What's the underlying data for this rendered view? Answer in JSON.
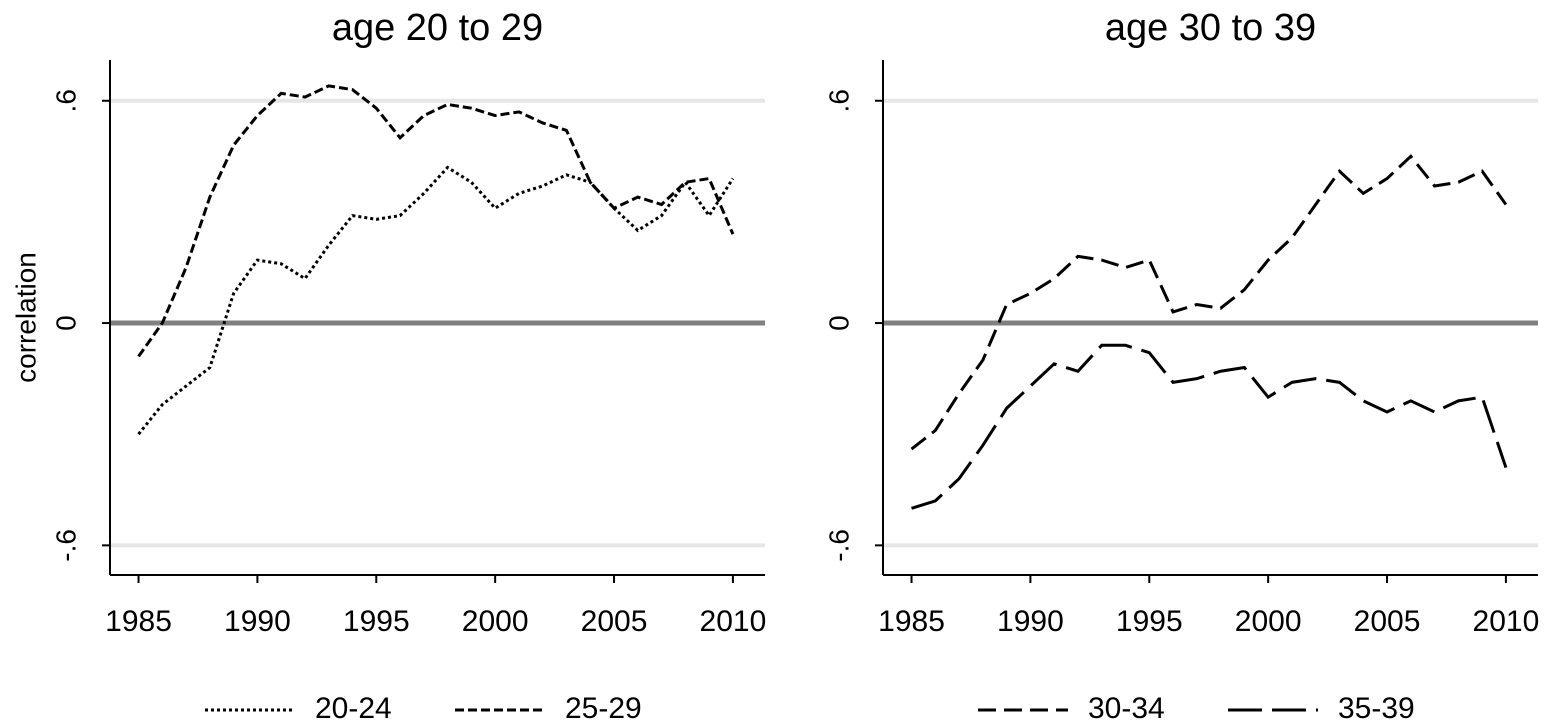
{
  "chart_data": [
    {
      "type": "line",
      "title": "age 20 to 29",
      "y_label": "correlation",
      "x": [
        1985,
        1986,
        1987,
        1988,
        1989,
        1990,
        1991,
        1992,
        1993,
        1994,
        1995,
        1996,
        1997,
        1998,
        1999,
        2000,
        2001,
        2002,
        2003,
        2004,
        2005,
        2006,
        2007,
        2008,
        2009,
        2010
      ],
      "series": [
        {
          "name": "20-24",
          "color": "#000000",
          "linestyle": "dotted",
          "values": [
            -0.3,
            -0.22,
            -0.17,
            -0.12,
            0.08,
            0.17,
            0.16,
            0.12,
            0.21,
            0.29,
            0.28,
            0.29,
            0.35,
            0.42,
            0.38,
            0.31,
            0.35,
            0.37,
            0.4,
            0.38,
            0.31,
            0.25,
            0.29,
            0.38,
            0.29,
            0.39
          ]
        },
        {
          "name": "25-29",
          "color": "#000000",
          "linestyle": "dashed",
          "values": [
            -0.09,
            0.0,
            0.15,
            0.34,
            0.48,
            0.56,
            0.62,
            0.61,
            0.64,
            0.63,
            0.58,
            0.5,
            0.56,
            0.59,
            0.58,
            0.56,
            0.57,
            0.54,
            0.52,
            0.38,
            0.31,
            0.34,
            0.32,
            0.38,
            0.39,
            0.24
          ]
        }
      ],
      "xlim": [
        1983.8,
        2011.35
      ],
      "xticks": [
        1985,
        1990,
        1995,
        2000,
        2005,
        2010
      ],
      "ylim": [
        -0.68,
        0.71
      ],
      "yticks": [
        {
          "value": -0.6,
          "label": "-.6"
        },
        0,
        {
          "value": 0.6,
          "label": ".6"
        }
      ],
      "grid": true
    },
    {
      "type": "line",
      "title": "age 30 to 39",
      "x": [
        1985,
        1986,
        1987,
        1988,
        1989,
        1990,
        1991,
        1992,
        1993,
        1994,
        1995,
        1996,
        1997,
        1998,
        1999,
        2000,
        2001,
        2002,
        2003,
        2004,
        2005,
        2006,
        2007,
        2008,
        2009,
        2010
      ],
      "series": [
        {
          "name": "30-34",
          "color": "#000000",
          "linestyle": "longdash",
          "values": [
            -0.34,
            -0.29,
            -0.19,
            -0.1,
            0.05,
            0.08,
            0.12,
            0.18,
            0.17,
            0.15,
            0.17,
            0.03,
            0.05,
            0.04,
            0.09,
            0.17,
            0.23,
            0.32,
            0.41,
            0.35,
            0.39,
            0.45,
            0.37,
            0.38,
            0.41,
            0.32
          ]
        },
        {
          "name": "35-39",
          "color": "#000000",
          "linestyle": "solid-long",
          "values": [
            -0.5,
            -0.48,
            -0.42,
            -0.33,
            -0.23,
            -0.17,
            -0.11,
            -0.13,
            -0.06,
            -0.06,
            -0.08,
            -0.16,
            -0.15,
            -0.13,
            -0.12,
            -0.2,
            -0.16,
            -0.15,
            -0.16,
            -0.21,
            -0.24,
            -0.21,
            -0.24,
            -0.21,
            -0.2,
            -0.39
          ]
        }
      ],
      "xlim": [
        1983.8,
        2011.35
      ],
      "xticks": [
        1985,
        1990,
        1995,
        2000,
        2005,
        2010
      ],
      "ylim": [
        -0.68,
        0.71
      ],
      "yticks": [
        {
          "value": -0.6,
          "label": "-.6"
        },
        0,
        {
          "value": 0.6,
          "label": ".6"
        }
      ],
      "grid": true
    }
  ]
}
